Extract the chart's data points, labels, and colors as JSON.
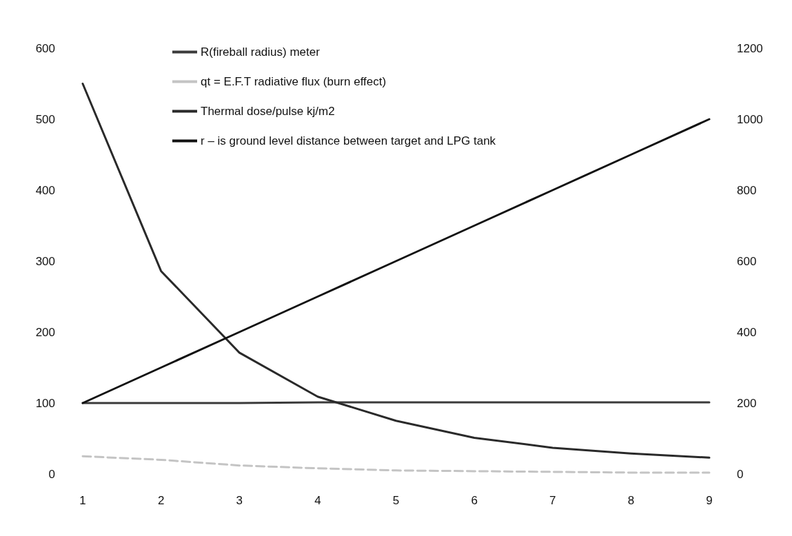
{
  "chart_data": {
    "type": "line",
    "categories": [
      "1",
      "2",
      "3",
      "4",
      "5",
      "6",
      "7",
      "8",
      "9"
    ],
    "series": [
      {
        "name": "R(fireball radius) meter",
        "color": "#3a3a3a",
        "values": [
          100,
          100,
          100,
          101,
          101,
          101,
          101,
          101,
          101
        ]
      },
      {
        "name": "qt = E.F.T radiative flux (burn effect)",
        "color": "#c4c4c4",
        "line_style": "dashed",
        "values": [
          25,
          20,
          12,
          8,
          5,
          4,
          3,
          2,
          2
        ]
      },
      {
        "name": "Thermal dose/pulse kj/m2",
        "color": "#2a2a2a",
        "values": [
          550,
          286,
          171,
          109,
          75,
          51,
          37,
          29,
          23
        ]
      },
      {
        "name": "r – is ground level distance between target and LPG tank",
        "color": "#111111",
        "axis": "y2",
        "values": [
          200,
          300,
          400,
          500,
          600,
          700,
          800,
          900,
          1000
        ]
      }
    ],
    "ylim": [
      0,
      600
    ],
    "yticks": [
      0,
      100,
      200,
      300,
      400,
      500,
      600
    ],
    "y2lim": [
      0,
      1200
    ],
    "y2ticks": [
      0,
      200,
      400,
      600,
      800,
      1000,
      1200
    ],
    "grid": false,
    "legend": "top left",
    "marker": "none",
    "line_style": "solid"
  }
}
